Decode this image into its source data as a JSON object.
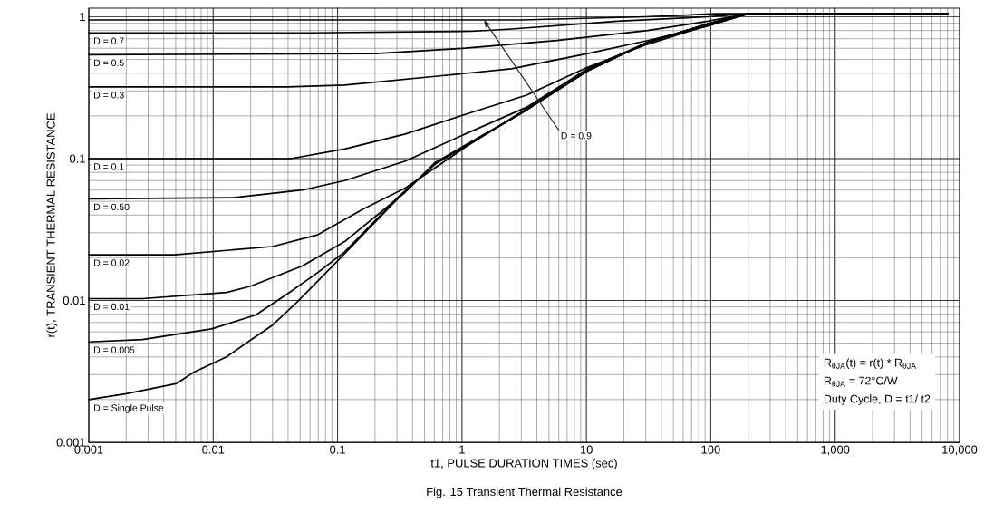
{
  "chart_data": {
    "type": "line",
    "title": "Fig. 15 Transient Thermal Resistance",
    "xlabel": "t1, PULSE DURATION TIMES (sec)",
    "ylabel": "r(t), TRANSIENT THERMAL RESISTANCE",
    "log": "xy",
    "grid": true,
    "legend": false,
    "marker": "none",
    "line_style": "solid",
    "xlim": [
      0.001,
      10000
    ],
    "ylim": [
      0.001,
      1.15
    ],
    "xticks": [
      0.001,
      0.01,
      0.1,
      1,
      10,
      100,
      {
        "value": 1000,
        "label": "1,000"
      },
      {
        "value": 10000,
        "label": "10,000"
      }
    ],
    "yticks": [
      0.001,
      0.01,
      0.1,
      1
    ],
    "annotations": [
      {
        "text": "D = 0.9",
        "x": 1.5,
        "y": 0.95
      },
      "R$_{θJA}$(t) = r(t) * R$_{θJA}$",
      "R$_{θJA}$ = 72°C/W",
      "Duty Cycle, D = t1/ t2"
    ],
    "series": [
      {
        "color": "#000000",
        "x": [
          0.001,
          3,
          30,
          110,
          8000
        ],
        "values": [
          0.95,
          0.95,
          1.0,
          1.05,
          1.05
        ]
      },
      {
        "name": "D = 0.7",
        "color": "#000000",
        "x": [
          0.001,
          0.06,
          1.2,
          2.5,
          17.7,
          95,
          200,
          8000
        ],
        "values": [
          0.77,
          0.77,
          0.79,
          0.82,
          0.93,
          1.0,
          1.05,
          1.05
        ]
      },
      {
        "name": "D = 0.5",
        "color": "#000000",
        "x": [
          0.001,
          0.2,
          1.06,
          5.8,
          31,
          95,
          200,
          8000
        ],
        "values": [
          0.54,
          0.55,
          0.6,
          0.68,
          0.8,
          0.93,
          1.05,
          1.05
        ]
      },
      {
        "name": "D = 0.3",
        "color": "#000000",
        "x": [
          0.001,
          0.04,
          0.114,
          0.61,
          2.5,
          10.2,
          31,
          95,
          200,
          8000
        ],
        "values": [
          0.32,
          0.32,
          0.33,
          0.38,
          0.43,
          0.55,
          0.68,
          0.86,
          1.05,
          1.05
        ]
      },
      {
        "name": "D = 0.1",
        "color": "#000000",
        "x": [
          0.001,
          0.042,
          0.114,
          0.35,
          1.06,
          3.3,
          10.2,
          31,
          95,
          200,
          8000
        ],
        "values": [
          0.1,
          0.1,
          0.117,
          0.149,
          0.205,
          0.28,
          0.44,
          0.64,
          0.87,
          1.05,
          1.05
        ]
      },
      {
        "name": "D = 0.50",
        "color": "#000000",
        "x": [
          0.001,
          0.0145,
          0.052,
          0.114,
          0.35,
          1.06,
          3.3,
          10.2,
          31,
          95,
          200,
          8000
        ],
        "values": [
          0.052,
          0.053,
          0.06,
          0.07,
          0.096,
          0.149,
          0.23,
          0.43,
          0.66,
          0.89,
          1.05,
          1.05
        ]
      },
      {
        "name": "D = 0.02",
        "color": "#000000",
        "x": [
          0.001,
          0.0049,
          0.03,
          0.069,
          0.16,
          0.35,
          1.06,
          3.3,
          10.2,
          31,
          95,
          200,
          8000
        ],
        "values": [
          0.021,
          0.021,
          0.024,
          0.029,
          0.044,
          0.062,
          0.12,
          0.225,
          0.42,
          0.66,
          0.89,
          1.05,
          1.05
        ]
      },
      {
        "name": "D = 0.01",
        "color": "#000000",
        "x": [
          0.001,
          0.0027,
          0.0128,
          0.02,
          0.052,
          0.114,
          0.35,
          0.61,
          3.3,
          10.2,
          31,
          95,
          200,
          8000
        ],
        "values": [
          0.0103,
          0.0103,
          0.0114,
          0.0126,
          0.0175,
          0.026,
          0.058,
          0.094,
          0.22,
          0.415,
          0.66,
          0.89,
          1.05,
          1.05
        ]
      },
      {
        "name": "D = 0.005",
        "color": "#000000",
        "x": [
          0.001,
          0.0027,
          0.0097,
          0.022,
          0.04,
          0.069,
          0.114,
          0.31,
          0.61,
          3.3,
          10.2,
          31,
          95,
          200,
          8000
        ],
        "values": [
          0.0051,
          0.0053,
          0.0063,
          0.0079,
          0.0112,
          0.0157,
          0.022,
          0.054,
          0.092,
          0.22,
          0.415,
          0.66,
          0.89,
          1.05,
          1.05
        ]
      },
      {
        "name": "D = Single Pulse",
        "color": "#000000",
        "x": [
          0.001,
          0.002,
          0.0051,
          0.0069,
          0.0128,
          0.019,
          0.03,
          0.047,
          0.1,
          0.31,
          0.61,
          3.3,
          10.2,
          31,
          95,
          200,
          8000
        ],
        "values": [
          0.002,
          0.0022,
          0.0026,
          0.0031,
          0.004,
          0.0051,
          0.0067,
          0.0097,
          0.019,
          0.053,
          0.092,
          0.22,
          0.415,
          0.66,
          0.89,
          1.05,
          1.05
        ]
      }
    ]
  }
}
